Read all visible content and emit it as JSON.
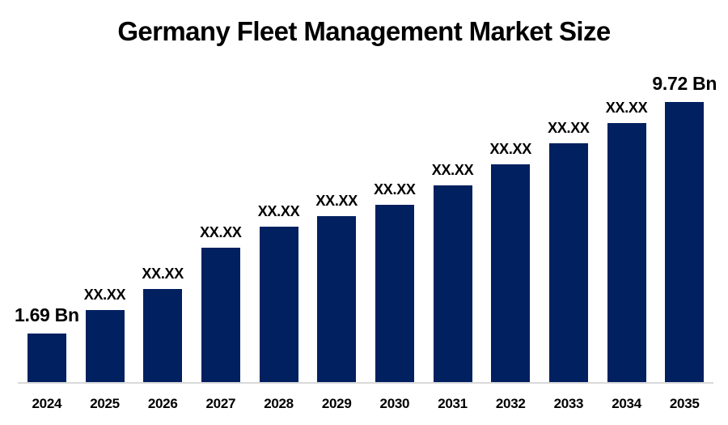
{
  "title": "Germany Fleet Management Market Size",
  "colors": {
    "bar": "#002060",
    "axis_line": "#d9d9d9",
    "text": "#000000",
    "background": "#ffffff"
  },
  "chart_data": {
    "type": "bar",
    "title": "Germany Fleet Management Market Size",
    "xlabel": "",
    "ylabel": "",
    "unit": "Bn",
    "categories": [
      "2024",
      "2025",
      "2026",
      "2027",
      "2028",
      "2029",
      "2030",
      "2031",
      "2032",
      "2033",
      "2034",
      "2035"
    ],
    "values": [
      1.69,
      2.5,
      3.23,
      4.66,
      5.39,
      5.76,
      6.15,
      6.83,
      7.56,
      8.29,
      8.99,
      9.72
    ],
    "bar_labels": [
      "1.69 Bn",
      "XX.XX",
      "XX.XX",
      "XX.XX",
      "XX.XX",
      "XX.XX",
      "XX.XX",
      "XX.XX",
      "XX.XX",
      "XX.XX",
      "XX.XX",
      "9.72 Bn"
    ],
    "values_note": "Intermediate bars are masked as XX.XX in the source; values are pixel-estimated",
    "ylim": [
      0,
      9.72
    ],
    "grid": false,
    "legend": false
  }
}
